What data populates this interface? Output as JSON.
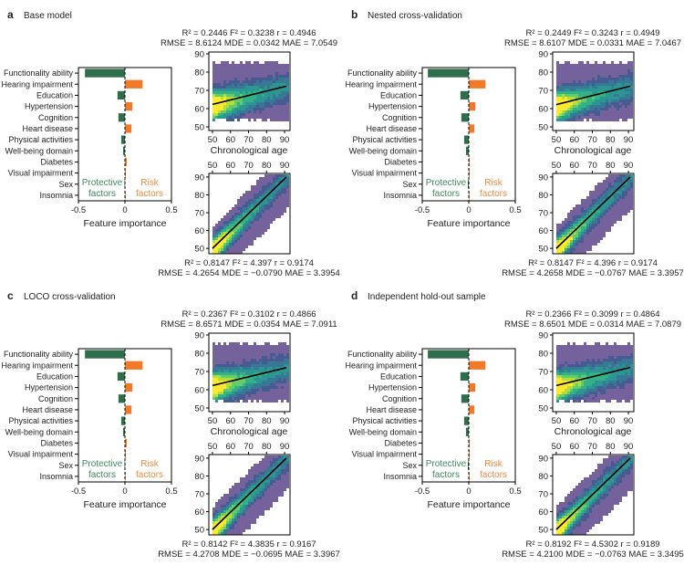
{
  "colors": {
    "protective": "#2f6e4a",
    "risk": "#f07a2a",
    "protective_text": "#3d8a5f",
    "risk_text": "#f08a3c"
  },
  "chart_data": [
    {
      "letter": "a",
      "title": "Base model",
      "type": "bar+scatter",
      "bar": {
        "categories": [
          "Functionality ability",
          "Hearing impairment",
          "Education",
          "Hypertension",
          "Cognition",
          "Heart disease",
          "Physical activities",
          "Well-being domain",
          "Diabetes",
          "Visual impairment",
          "Sex",
          "Insomnia"
        ],
        "values": [
          -0.43,
          0.19,
          -0.08,
          0.08,
          -0.07,
          0.07,
          -0.04,
          -0.02,
          0.02,
          0.01,
          -0.005,
          0.005
        ],
        "xlabel": "Feature importance",
        "xticks": [
          "-0.5",
          "0",
          "0.5"
        ],
        "xlim": [
          -0.5,
          0.5
        ],
        "protective_label": [
          "Protective",
          "factors"
        ],
        "risk_label": [
          "Risk",
          "factors"
        ]
      },
      "top_scatter": {
        "metrics": [
          "R² = 0.2446 F² = 0.3238 r = 0.4946",
          "RMSE = 8.6124 MDE = 0.0342 MAE = 7.0549"
        ],
        "xlabel": "Chronological age",
        "xticks": [
          "50",
          "60",
          "70",
          "80",
          "90"
        ],
        "yticks": [
          "50",
          "60",
          "70",
          "80",
          "90"
        ],
        "fit": [
          [
            50,
            62.3
          ],
          [
            91,
            72.3
          ]
        ]
      },
      "bottom_scatter": {
        "metrics": [
          "R² = 0.8147 F² = 4.397 r = 0.9174",
          "RMSE = 4.2654 MDE = −0.0790 MAE = 3.3954"
        ],
        "xticks": [
          "50",
          "60",
          "70",
          "80",
          "90"
        ],
        "yticks": [
          "50",
          "60",
          "70",
          "80",
          "90"
        ],
        "fit": [
          [
            50,
            50
          ],
          [
            91,
            90
          ]
        ]
      }
    },
    {
      "letter": "b",
      "title": "Nested cross-validation",
      "type": "bar+scatter",
      "bar": {
        "categories": [
          "Functionality ability",
          "Hearing impairment",
          "Education",
          "Hypertension",
          "Cognition",
          "Heart disease",
          "Physical activities",
          "Well-being domain",
          "Diabetes",
          "Visual impairment",
          "Sex",
          "Insomnia"
        ],
        "values": [
          -0.44,
          0.18,
          -0.09,
          0.07,
          -0.08,
          0.06,
          -0.05,
          -0.03,
          0.01,
          0.01,
          -0.01,
          0.0
        ],
        "xlabel": "Feature importance",
        "xticks": [
          "-0.5",
          "0",
          "0.5"
        ],
        "xlim": [
          -0.5,
          0.5
        ],
        "protective_label": [
          "Protective",
          "factors"
        ],
        "risk_label": [
          "Risk",
          "factors"
        ]
      },
      "top_scatter": {
        "metrics": [
          "R² = 0.2449 F² = 0.3243 r = 0.4949",
          "RMSE = 8.6107 MDE = 0.0331 MAE = 7.0467"
        ],
        "xlabel": "Chronological age",
        "xticks": [
          "50",
          "60",
          "70",
          "80",
          "90"
        ],
        "yticks": [
          "50",
          "60",
          "70",
          "80",
          "90"
        ],
        "fit": [
          [
            50,
            62.2
          ],
          [
            91,
            72.3
          ]
        ]
      },
      "bottom_scatter": {
        "metrics": [
          "R² = 0.8147 F² = 4.396 r = 0.9174",
          "RMSE = 4.2658 MDE = −0.0767 MAE = 3.3957"
        ],
        "xticks": [
          "50",
          "60",
          "70",
          "80",
          "90"
        ],
        "yticks": [
          "50",
          "60",
          "70",
          "80",
          "90"
        ],
        "fit": [
          [
            50,
            50
          ],
          [
            91,
            90
          ]
        ]
      }
    },
    {
      "letter": "c",
      "title": "LOCO cross-validation",
      "type": "bar+scatter",
      "bar": {
        "categories": [
          "Functionality ability",
          "Hearing impairment",
          "Education",
          "Hypertension",
          "Cognition",
          "Heart disease",
          "Physical activities",
          "Well-being domain",
          "Diabetes",
          "Visual impairment",
          "Sex",
          "Insomnia"
        ],
        "values": [
          -0.43,
          0.19,
          -0.08,
          0.08,
          -0.07,
          0.07,
          -0.04,
          -0.02,
          0.02,
          0.01,
          -0.005,
          0.005
        ],
        "xlabel": "Feature importance",
        "xticks": [
          "-0.5",
          "0",
          "0.5"
        ],
        "xlim": [
          -0.5,
          0.5
        ],
        "protective_label": [
          "Protective",
          "factors"
        ],
        "risk_label": [
          "Risk",
          "factors"
        ]
      },
      "top_scatter": {
        "metrics": [
          "R² = 0.2367 F² = 0.3102 r = 0.4866",
          "RMSE = 8.6571 MDE = 0.0354 MAE = 7.0911"
        ],
        "xlabel": "Chronological age",
        "xticks": [
          "50",
          "60",
          "70",
          "80",
          "90"
        ],
        "yticks": [
          "50",
          "60",
          "70",
          "80",
          "90"
        ],
        "fit": [
          [
            50,
            62.3
          ],
          [
            91,
            72.1
          ]
        ]
      },
      "bottom_scatter": {
        "metrics": [
          "R² = 0.8142 F² = 4.3835 r = 0.9167",
          "RMSE = 4.2708 MDE = −0.0695 MAE = 3.3967"
        ],
        "xticks": [
          "50",
          "60",
          "70",
          "80",
          "90"
        ],
        "yticks": [
          "50",
          "60",
          "70",
          "80",
          "90"
        ],
        "fit": [
          [
            50,
            50
          ],
          [
            91,
            90
          ]
        ]
      }
    },
    {
      "letter": "d",
      "title": "Independent hold-out sample",
      "type": "bar+scatter",
      "bar": {
        "categories": [
          "Functionality ability",
          "Hearing impairment",
          "Education",
          "Hypertension",
          "Cognition",
          "Heart disease",
          "Physical activities",
          "Well-being domain",
          "Diabetes",
          "Visual impairment",
          "Sex",
          "Insomnia"
        ],
        "values": [
          -0.44,
          0.18,
          -0.09,
          0.07,
          -0.08,
          0.06,
          -0.05,
          -0.03,
          0.01,
          0.01,
          -0.01,
          0.0
        ],
        "xlabel": "Feature importance",
        "xticks": [
          "-0.5",
          "0",
          "0.5"
        ],
        "xlim": [
          -0.5,
          0.5
        ],
        "protective_label": [
          "Protective",
          "factors"
        ],
        "risk_label": [
          "Risk",
          "factors"
        ]
      },
      "top_scatter": {
        "metrics": [
          "R² = 0.2366 F² = 0.3099 r = 0.4864",
          "RMSE = 8.6501 MDE = 0.0314 MAE = 7.0879"
        ],
        "xlabel": "Chronological age",
        "xticks": [
          "50",
          "60",
          "70",
          "80",
          "90"
        ],
        "yticks": [
          "50",
          "60",
          "70",
          "80",
          "90"
        ],
        "fit": [
          [
            50,
            62.3
          ],
          [
            91,
            72.2
          ]
        ]
      },
      "bottom_scatter": {
        "metrics": [
          "R² = 0.8192 F² = 4.5302 r = 0.9189",
          "RMSE = 4.2100 MDE = −0.0763 MAE = 3.3495"
        ],
        "xticks": [
          "50",
          "60",
          "70",
          "80",
          "90"
        ],
        "yticks": [
          "50",
          "60",
          "70",
          "80",
          "90"
        ],
        "fit": [
          [
            50,
            50
          ],
          [
            91,
            90
          ]
        ]
      }
    }
  ]
}
